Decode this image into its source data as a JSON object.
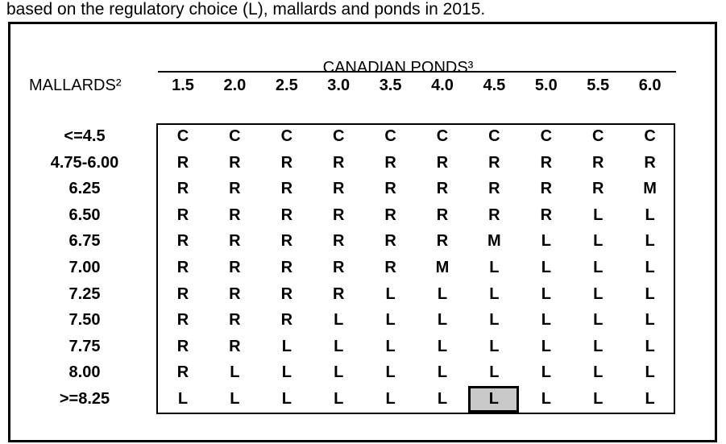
{
  "caption": "based on the regulatory choice (L), mallards and ponds in 2015.",
  "table": {
    "column_group_title": "CANADIAN PONDS³",
    "row_group_title": "MALLARDS²",
    "columns": [
      "1.5",
      "2.0",
      "2.5",
      "3.0",
      "3.5",
      "4.0",
      "4.5",
      "5.0",
      "5.5",
      "6.0"
    ],
    "rows": [
      {
        "label": "<=4.5",
        "cells": [
          "C",
          "C",
          "C",
          "C",
          "C",
          "C",
          "C",
          "C",
          "C",
          "C"
        ]
      },
      {
        "label": "4.75-6.00",
        "cells": [
          "R",
          "R",
          "R",
          "R",
          "R",
          "R",
          "R",
          "R",
          "R",
          "R"
        ]
      },
      {
        "label": "6.25",
        "cells": [
          "R",
          "R",
          "R",
          "R",
          "R",
          "R",
          "R",
          "R",
          "R",
          "M"
        ]
      },
      {
        "label": "6.50",
        "cells": [
          "R",
          "R",
          "R",
          "R",
          "R",
          "R",
          "R",
          "R",
          "L",
          "L"
        ]
      },
      {
        "label": "6.75",
        "cells": [
          "R",
          "R",
          "R",
          "R",
          "R",
          "R",
          "M",
          "L",
          "L",
          "L"
        ]
      },
      {
        "label": "7.00",
        "cells": [
          "R",
          "R",
          "R",
          "R",
          "R",
          "M",
          "L",
          "L",
          "L",
          "L"
        ]
      },
      {
        "label": "7.25",
        "cells": [
          "R",
          "R",
          "R",
          "R",
          "L",
          "L",
          "L",
          "L",
          "L",
          "L"
        ]
      },
      {
        "label": "7.50",
        "cells": [
          "R",
          "R",
          "R",
          "L",
          "L",
          "L",
          "L",
          "L",
          "L",
          "L"
        ]
      },
      {
        "label": "7.75",
        "cells": [
          "R",
          "R",
          "L",
          "L",
          "L",
          "L",
          "L",
          "L",
          "L",
          "L"
        ]
      },
      {
        "label": "8.00",
        "cells": [
          "R",
          "L",
          "L",
          "L",
          "L",
          "L",
          "L",
          "L",
          "L",
          "L"
        ]
      },
      {
        "label": ">=8.25",
        "cells": [
          "L",
          "L",
          "L",
          "L",
          "L",
          "L",
          "L",
          "L",
          "L",
          "L"
        ]
      }
    ],
    "highlighted_cell": {
      "row": 10,
      "col": 6,
      "fill": "#c8c8c8"
    }
  }
}
